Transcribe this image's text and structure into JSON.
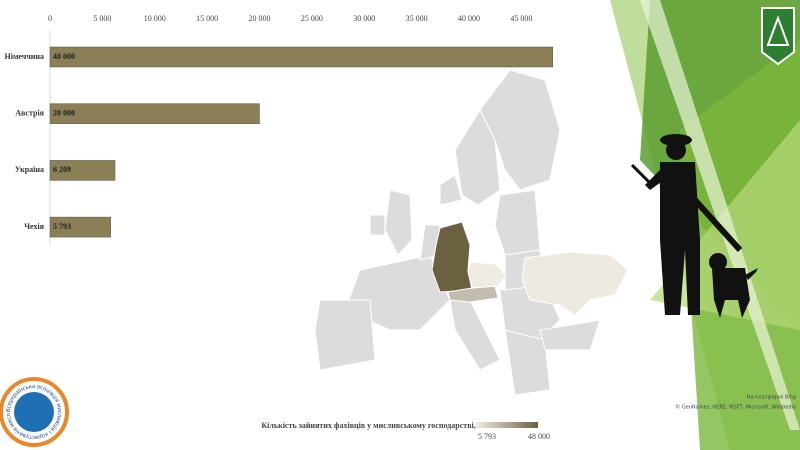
{
  "chart_data": {
    "type": "bar",
    "orientation": "horizontal",
    "categories": [
      "Німеччина",
      "Австрія",
      "Україна",
      "Чехія"
    ],
    "values": [
      48000,
      20000,
      6209,
      5793
    ],
    "value_labels": [
      "48 000",
      "20 000",
      "6 209",
      "5 793"
    ],
    "color": "#8b7f55",
    "xlim": [
      0,
      48500
    ],
    "xticks": [
      0,
      {
        "value": 5000,
        "label": "5 000"
      },
      {
        "value": 10000,
        "label": "10 000"
      },
      {
        "value": 15000,
        "label": "15 000"
      },
      {
        "value": 20000,
        "label": "20 000"
      },
      {
        "value": 25000,
        "label": "25 000"
      },
      {
        "value": 30000,
        "label": "30 000"
      },
      {
        "value": 35000,
        "label": "35 000"
      },
      {
        "value": 40000,
        "label": "40 000"
      },
      {
        "value": 45000,
        "label": "45 000"
      }
    ],
    "grid": false,
    "map": {
      "title": "Кількість зайнятих фахівців у мисливському господарстві, чол.",
      "legend_min": {
        "value": 5793,
        "label": "5 793"
      },
      "legend_max": {
        "value": 48000,
        "label": "48 000"
      },
      "color_low": "#eeebe3",
      "color_high": "#6b6040",
      "attribution": [
        "На платформі Bing",
        "© GeoNames, HERE, MSFT, Microsoft, Wikipedia"
      ]
    }
  },
  "logo": {
    "text": "Всеукраїнська асоціація мисливців і користувачів мисливських угідь"
  }
}
